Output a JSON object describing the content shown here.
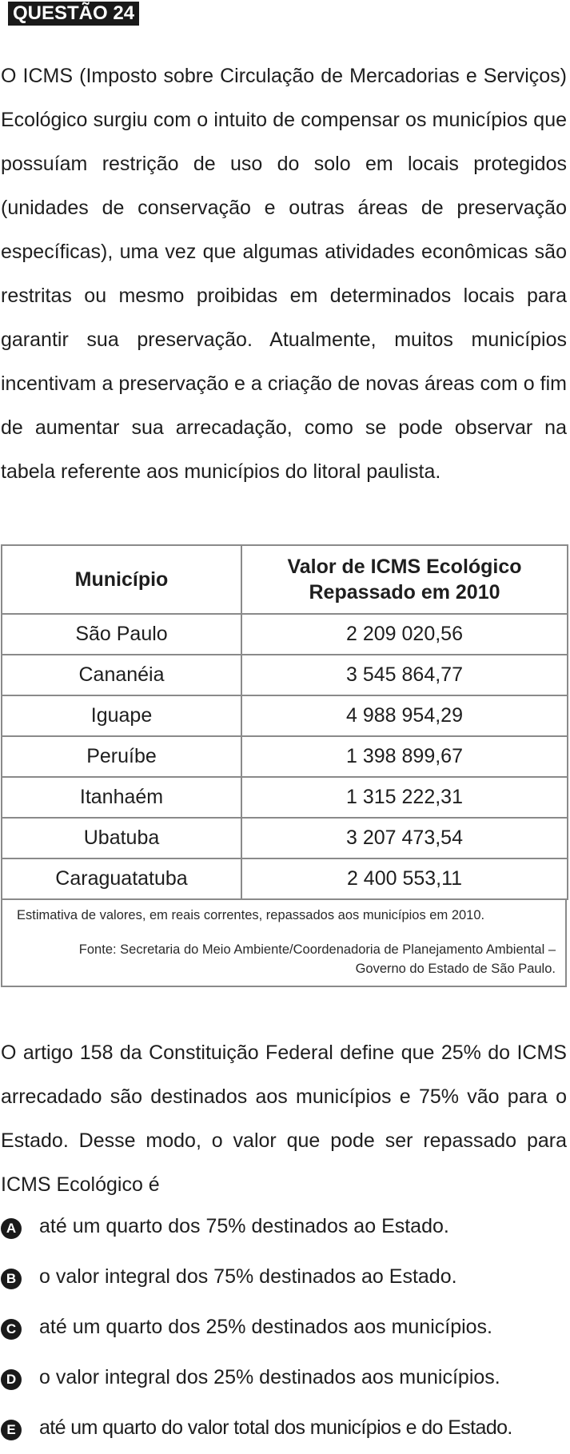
{
  "question": {
    "title": "QUESTÃO 24"
  },
  "intro_text": "O ICMS (Imposto sobre Circulação de Mercadorias e Serviços) Ecológico surgiu com o intuito de compensar os municípios que possuíam restrição de uso do solo em locais protegidos (unidades de conservação e outras áreas de preservação específicas), uma vez que algumas atividades econômicas são restritas ou mesmo proibidas em determinados locais para garantir sua preservação. Atualmente, muitos municípios incentivam a preservação e a criação de novas áreas com o fim de aumentar sua arrecadação, como se pode observar na tabela referente aos municípios do litoral paulista.",
  "table": {
    "headers": [
      "Município",
      "Valor de ICMS Ecológico Repassado em 2010"
    ],
    "rows": [
      [
        "São Paulo",
        "2 209 020,56"
      ],
      [
        "Cananéia",
        "3 545 864,77"
      ],
      [
        "Iguape",
        "4 988 954,29"
      ],
      [
        "Peruíbe",
        "1 398 899,67"
      ],
      [
        "Itanhaém",
        "1 315 222,31"
      ],
      [
        "Ubatuba",
        "3 207 473,54"
      ],
      [
        "Caraguatatuba",
        "2 400 553,11"
      ]
    ],
    "note": "Estimativa de valores, em reais correntes, repassados aos municípios em 2010.",
    "source": "Fonte: Secretaria do Meio Ambiente/Coordenadoria de Planejamento Ambiental – Governo do Estado de São Paulo."
  },
  "stem_text": "O artigo 158 da Constituição Federal define que 25% do ICMS arrecadado são destinados aos municípios e 75% vão para o Estado. Desse modo, o valor que pode ser repassado para ICMS Ecológico é",
  "options": [
    {
      "letter": "A",
      "text": "até um quarto dos 75% destinados ao Estado."
    },
    {
      "letter": "B",
      "text": "o valor integral dos 75% destinados ao Estado."
    },
    {
      "letter": "C",
      "text": "até um quarto dos 25% destinados aos municípios."
    },
    {
      "letter": "D",
      "text": "o valor integral dos 25% destinados aos municípios."
    },
    {
      "letter": "E",
      "text": "até um quarto do valor total dos municípios e do Estado."
    }
  ]
}
